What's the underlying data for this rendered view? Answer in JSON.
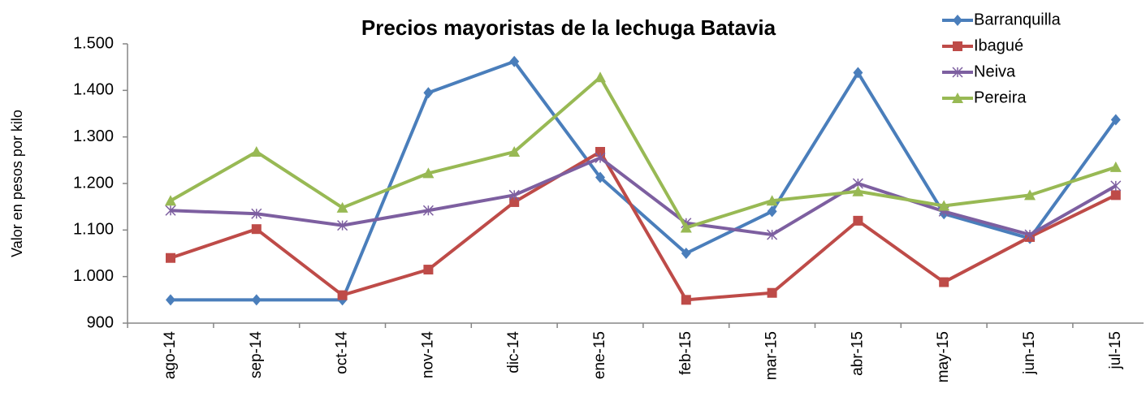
{
  "chart_data": {
    "type": "line",
    "title": "Precios mayoristas de la lechuga Batavia",
    "y_label": "Valor en pesos por kilo",
    "categories": [
      "ago-14",
      "sep-14",
      "oct-14",
      "nov-14",
      "dic-14",
      "ene-15",
      "feb-15",
      "mar-15",
      "abr-15",
      "may-15",
      "jun-15",
      "jul-15"
    ],
    "series": [
      {
        "name": "Barranquilla",
        "color": "#4a7ebb",
        "marker": "diamond",
        "values": [
          950,
          950,
          950,
          1395,
          1462,
          1213,
          1050,
          1140,
          1438,
          1135,
          1082,
          1337
        ]
      },
      {
        "name": "Ibagué",
        "color": "#be4b48",
        "marker": "square",
        "values": [
          1040,
          1102,
          960,
          1015,
          1160,
          1268,
          950,
          965,
          1120,
          988,
          1085,
          1175
        ]
      },
      {
        "name": "Neiva",
        "color": "#7d5fa0",
        "marker": "cross",
        "values": [
          1142,
          1135,
          1110,
          1142,
          1175,
          1255,
          1115,
          1090,
          1200,
          1140,
          1090,
          1195
        ]
      },
      {
        "name": "Pereira",
        "color": "#98b954",
        "marker": "triangle",
        "values": [
          1163,
          1268,
          1148,
          1222,
          1268,
          1428,
          1105,
          1163,
          1183,
          1152,
          1175,
          1235
        ]
      }
    ],
    "ylim": [
      900,
      1500
    ],
    "yticks": [
      900,
      {
        "value": 1000,
        "label": "1.000"
      },
      {
        "value": 1100,
        "label": "1.100"
      },
      {
        "value": 1200,
        "label": "1.200"
      },
      {
        "value": 1300,
        "label": "1.300"
      },
      {
        "value": 1400,
        "label": "1.400"
      },
      {
        "value": 1500,
        "label": "1.500"
      }
    ],
    "grid": false,
    "legend": "top-right"
  }
}
